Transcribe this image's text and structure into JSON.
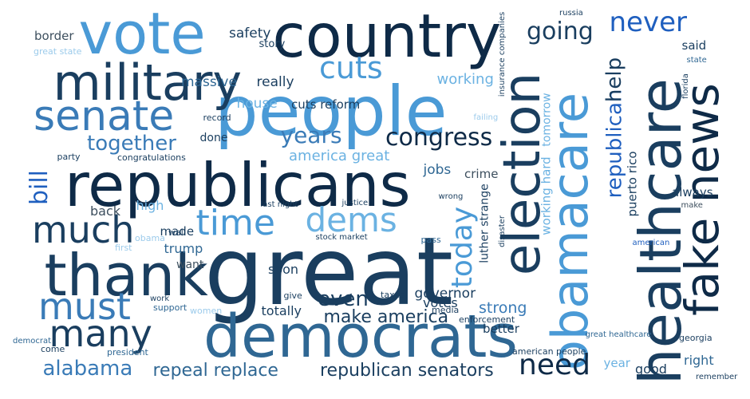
{
  "palette": {
    "navy": "#0e2a47",
    "dark": "#1a3e5f",
    "steel": "#2f6793",
    "mid": "#3a7bb7",
    "sky": "#4a9ad6",
    "light": "#6bb2e2",
    "pale": "#9ccbeb",
    "royal": "#1f5fbf",
    "grey": "#3d4f5e"
  },
  "words": [
    {
      "text": "great",
      "color": "dark"
    },
    {
      "text": "people",
      "color": "sky"
    },
    {
      "text": "country",
      "color": "navy"
    },
    {
      "text": "democrats",
      "color": "steel"
    },
    {
      "text": "republicans",
      "color": "navy"
    },
    {
      "text": "vote",
      "color": "sky"
    },
    {
      "text": "thank",
      "color": "dark"
    },
    {
      "text": "military",
      "color": "dark"
    },
    {
      "text": "healthcare",
      "color": "dark"
    },
    {
      "text": "obamacare",
      "color": "sky"
    },
    {
      "text": "election",
      "color": "dark"
    },
    {
      "text": "fake news",
      "color": "navy"
    },
    {
      "text": "senate",
      "color": "mid"
    },
    {
      "text": "much",
      "color": "dark"
    },
    {
      "text": "must",
      "color": "mid"
    },
    {
      "text": "many",
      "color": "dark"
    },
    {
      "text": "time",
      "color": "sky"
    },
    {
      "text": "dems",
      "color": "light"
    },
    {
      "text": "cuts",
      "color": "sky"
    },
    {
      "text": "never",
      "color": "royal"
    },
    {
      "text": "going",
      "color": "dark"
    },
    {
      "text": "need",
      "color": "navy"
    },
    {
      "text": "today",
      "color": "sky"
    },
    {
      "text": "congress",
      "color": "navy"
    },
    {
      "text": "years",
      "color": "mid"
    },
    {
      "text": "together",
      "color": "mid"
    },
    {
      "text": "bill",
      "color": "royal"
    },
    {
      "text": "alabama",
      "color": "mid"
    },
    {
      "text": "republican senators",
      "color": "dark"
    },
    {
      "text": "repeal replace",
      "color": "steel"
    },
    {
      "text": "even",
      "color": "dark"
    },
    {
      "text": "make america",
      "color": "dark"
    },
    {
      "text": "republican",
      "color": "royal"
    },
    {
      "text": "help",
      "color": "dark"
    },
    {
      "text": "america great",
      "color": "light"
    },
    {
      "text": "jobs",
      "color": "steel"
    },
    {
      "text": "crime",
      "color": "grey"
    },
    {
      "text": "working",
      "color": "light"
    },
    {
      "text": "house",
      "color": "light"
    },
    {
      "text": "cuts reform",
      "color": "dark"
    },
    {
      "text": "massive",
      "color": "steel"
    },
    {
      "text": "really",
      "color": "dark"
    },
    {
      "text": "safety",
      "color": "dark"
    },
    {
      "text": "votes",
      "color": "dark"
    },
    {
      "text": "strong",
      "color": "mid"
    },
    {
      "text": "governor",
      "color": "dark"
    },
    {
      "text": "totally",
      "color": "dark"
    },
    {
      "text": "soon",
      "color": "dark"
    },
    {
      "text": "trump",
      "color": "steel"
    },
    {
      "text": "want",
      "color": "grey"
    },
    {
      "text": "made",
      "color": "dark"
    },
    {
      "text": "back",
      "color": "grey"
    },
    {
      "text": "high",
      "color": "light"
    },
    {
      "text": "border",
      "color": "grey"
    },
    {
      "text": "said",
      "color": "dark"
    },
    {
      "text": "always",
      "color": "dark"
    },
    {
      "text": "good",
      "color": "dark"
    },
    {
      "text": "right",
      "color": "steel"
    },
    {
      "text": "better",
      "color": "dark"
    },
    {
      "text": "year",
      "color": "light"
    },
    {
      "text": "done",
      "color": "dark"
    },
    {
      "text": "tomorrow",
      "color": "light"
    },
    {
      "text": "working hard",
      "color": "light"
    },
    {
      "text": "luther strange",
      "color": "dark"
    },
    {
      "text": "puerto rico",
      "color": "dark"
    },
    {
      "text": "story",
      "color": "dark"
    },
    {
      "text": "great state",
      "color": "pale"
    },
    {
      "text": "come",
      "color": "dark"
    },
    {
      "text": "record",
      "color": "dark"
    },
    {
      "text": "congratulations",
      "color": "dark"
    },
    {
      "text": "party",
      "color": "dark"
    },
    {
      "text": "last night",
      "color": "dark"
    },
    {
      "text": "justice",
      "color": "dark"
    },
    {
      "text": "wall",
      "color": "dark"
    },
    {
      "text": "obama",
      "color": "pale"
    },
    {
      "text": "first",
      "color": "pale"
    },
    {
      "text": "stock market",
      "color": "dark"
    },
    {
      "text": "pass",
      "color": "steel"
    },
    {
      "text": "work",
      "color": "dark"
    },
    {
      "text": "support",
      "color": "steel"
    },
    {
      "text": "give",
      "color": "dark"
    },
    {
      "text": "taxes",
      "color": "dark"
    },
    {
      "text": "women",
      "color": "pale"
    },
    {
      "text": "media",
      "color": "dark"
    },
    {
      "text": "enforcement",
      "color": "dark"
    },
    {
      "text": "democrat",
      "color": "steel"
    },
    {
      "text": "president",
      "color": "steel"
    },
    {
      "text": "american people",
      "color": "dark"
    },
    {
      "text": "georgia",
      "color": "dark"
    },
    {
      "text": "remember",
      "color": "dark"
    },
    {
      "text": "american",
      "color": "royal"
    },
    {
      "text": "make",
      "color": "grey"
    },
    {
      "text": "state",
      "color": "steel"
    },
    {
      "text": "russia",
      "color": "dark"
    },
    {
      "text": "insurance companies",
      "color": "dark"
    },
    {
      "text": "failing",
      "color": "pale"
    },
    {
      "text": "wrong",
      "color": "dark"
    },
    {
      "text": "disaster",
      "color": "dark"
    },
    {
      "text": "great healthcare",
      "color": "steel"
    },
    {
      "text": "florida",
      "color": "dark"
    }
  ]
}
